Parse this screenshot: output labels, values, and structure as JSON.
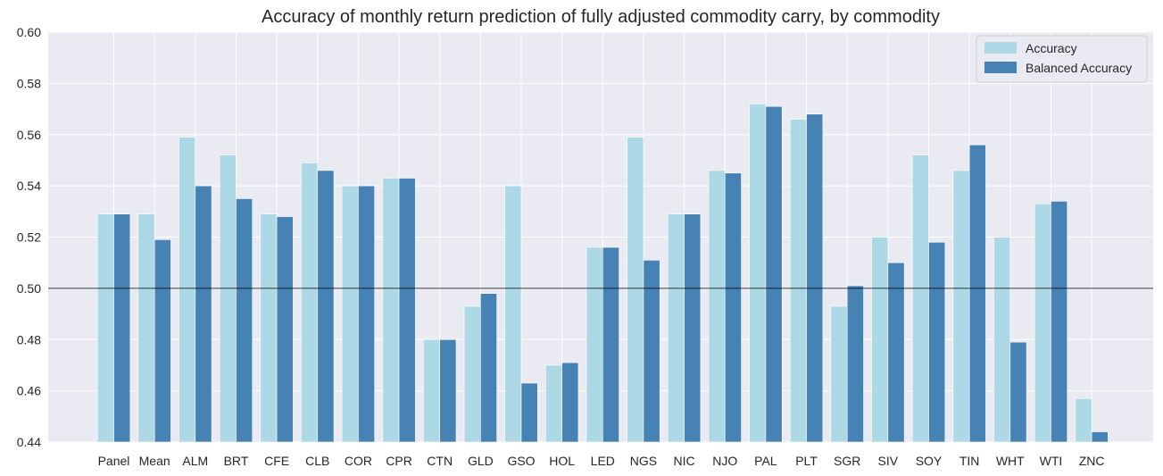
{
  "chart_data": {
    "type": "bar",
    "title": "Accuracy of monthly return prediction of fully adjusted commodity carry, by commodity",
    "xlabel": "",
    "ylabel": "",
    "ylim": [
      0.44,
      0.6
    ],
    "yticks": [
      "0.44",
      "0.46",
      "0.48",
      "0.50",
      "0.52",
      "0.54",
      "0.56",
      "0.58",
      "0.60"
    ],
    "reference_line": 0.5,
    "grid": true,
    "legend_position": "top-right",
    "categories": [
      "Panel",
      "Mean",
      "ALM",
      "BRT",
      "CFE",
      "CLB",
      "COR",
      "CPR",
      "CTN",
      "GLD",
      "GSO",
      "HOL",
      "LED",
      "NGS",
      "NIC",
      "NJO",
      "PAL",
      "PLT",
      "SGR",
      "SIV",
      "SOY",
      "TIN",
      "WHT",
      "WTI",
      "ZNC"
    ],
    "series": [
      {
        "name": "Accuracy",
        "color": "#add8e6",
        "values": [
          0.529,
          0.529,
          0.559,
          0.552,
          0.529,
          0.549,
          0.54,
          0.543,
          0.48,
          0.493,
          0.54,
          0.47,
          0.516,
          0.559,
          0.529,
          0.546,
          0.572,
          0.566,
          0.493,
          0.52,
          0.552,
          0.546,
          0.52,
          0.533,
          0.457
        ]
      },
      {
        "name": "Balanced Accuracy",
        "color": "#4682b4",
        "values": [
          0.529,
          0.519,
          0.54,
          0.535,
          0.528,
          0.546,
          0.54,
          0.543,
          0.48,
          0.498,
          0.463,
          0.471,
          0.516,
          0.511,
          0.529,
          0.545,
          0.571,
          0.568,
          0.501,
          0.51,
          0.518,
          0.556,
          0.479,
          0.534,
          0.444
        ]
      }
    ]
  }
}
